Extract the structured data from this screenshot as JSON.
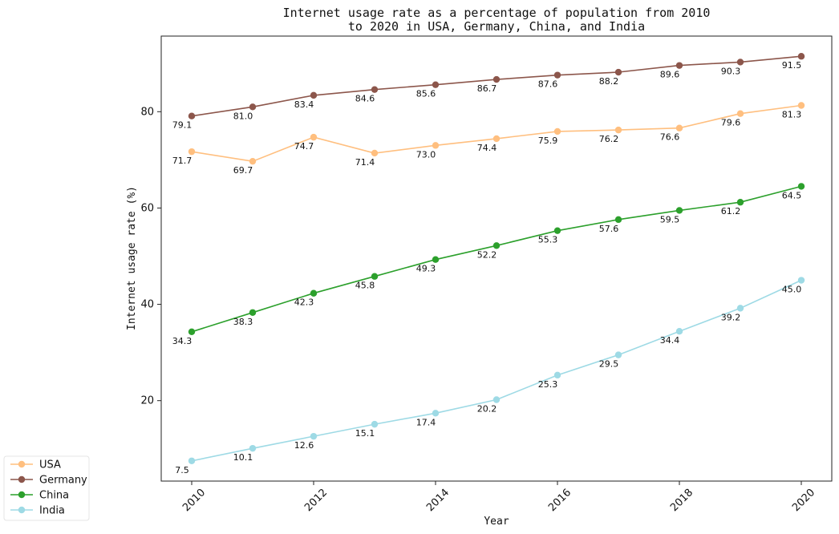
{
  "chart_data": {
    "type": "line",
    "title": "Internet usage rate as a percentage of population from 2010\nto 2020 in USA, Germany, China, and India",
    "xlabel": "Year",
    "ylabel": "Internet usage rate (%)",
    "x": [
      2010,
      2011,
      2012,
      2013,
      2014,
      2015,
      2016,
      2017,
      2018,
      2019,
      2020
    ],
    "x_ticks": [
      "2010",
      "2012",
      "2014",
      "2016",
      "2018",
      "2020"
    ],
    "y_ticks": [
      "20",
      "40",
      "60",
      "80"
    ],
    "xlim": [
      2009.5,
      2020.5
    ],
    "ylim": [
      3.3,
      95.7
    ],
    "grid": false,
    "legend_position": "bottom-left, outside plot",
    "series": [
      {
        "name": "USA",
        "color": "#ffbf7f",
        "values": [
          71.7,
          69.7,
          74.7,
          71.4,
          73.0,
          74.4,
          75.9,
          76.2,
          76.6,
          79.6,
          81.3
        ]
      },
      {
        "name": "Germany",
        "color": "#8c564b",
        "values": [
          79.1,
          81.0,
          83.4,
          84.6,
          85.6,
          86.7,
          87.6,
          88.2,
          89.6,
          90.3,
          91.5
        ]
      },
      {
        "name": "China",
        "color": "#2ca02c",
        "values": [
          34.3,
          38.3,
          42.3,
          45.8,
          49.3,
          52.2,
          55.3,
          57.6,
          59.5,
          61.2,
          64.5
        ]
      },
      {
        "name": "India",
        "color": "#9edae5",
        "values": [
          7.5,
          10.1,
          12.6,
          15.1,
          17.4,
          20.2,
          25.3,
          29.5,
          34.4,
          39.2,
          45.0
        ]
      }
    ]
  }
}
